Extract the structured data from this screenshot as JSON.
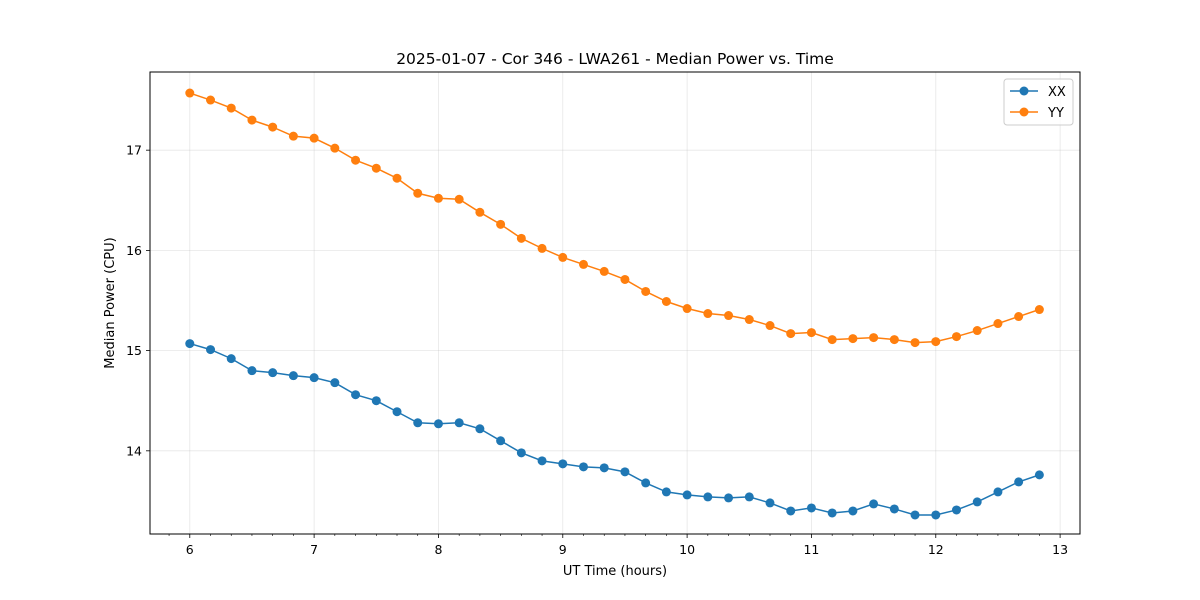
{
  "chart_data": {
    "type": "line",
    "title": "2025-01-07 - Cor 346 - LWA261 - Median Power vs. Time",
    "xlabel": "UT Time (hours)",
    "ylabel": "Median Power (CPU)",
    "xlim": [
      5.68,
      13.16
    ],
    "ylim": [
      13.17,
      17.78
    ],
    "xticks": [
      6,
      7,
      8,
      9,
      10,
      11,
      12,
      13
    ],
    "yticks": [
      14,
      15,
      16,
      17
    ],
    "grid": true,
    "legend_position": "upper-right",
    "x": [
      6.0,
      6.1667,
      6.3333,
      6.5,
      6.6667,
      6.8333,
      7.0,
      7.1667,
      7.3333,
      7.5,
      7.6667,
      7.8333,
      8.0,
      8.1667,
      8.3333,
      8.5,
      8.6667,
      8.8333,
      9.0,
      9.1667,
      9.3333,
      9.5,
      9.6667,
      9.8333,
      10.0,
      10.1667,
      10.3333,
      10.5,
      10.6667,
      10.8333,
      11.0,
      11.1667,
      11.3333,
      11.5,
      11.6667,
      11.8333,
      12.0,
      12.1667,
      12.3333,
      12.5,
      12.6667,
      12.8333
    ],
    "series": [
      {
        "name": "XX",
        "color": "#1f77b4",
        "values": [
          15.07,
          15.01,
          14.92,
          14.8,
          14.78,
          14.75,
          14.73,
          14.68,
          14.56,
          14.5,
          14.39,
          14.28,
          14.27,
          14.28,
          14.22,
          14.1,
          13.98,
          13.9,
          13.87,
          13.84,
          13.83,
          13.79,
          13.68,
          13.59,
          13.56,
          13.54,
          13.53,
          13.54,
          13.48,
          13.4,
          13.43,
          13.38,
          13.4,
          13.47,
          13.42,
          13.36,
          13.36,
          13.41,
          13.49,
          13.59,
          13.69,
          13.76
        ]
      },
      {
        "name": "YY",
        "color": "#ff7f0e",
        "values": [
          17.57,
          17.5,
          17.42,
          17.3,
          17.23,
          17.14,
          17.12,
          17.02,
          16.9,
          16.82,
          16.72,
          16.57,
          16.52,
          16.51,
          16.38,
          16.26,
          16.12,
          16.02,
          15.93,
          15.86,
          15.79,
          15.71,
          15.59,
          15.49,
          15.42,
          15.37,
          15.35,
          15.31,
          15.25,
          15.17,
          15.18,
          15.11,
          15.12,
          15.13,
          15.11,
          15.08,
          15.09,
          15.14,
          15.2,
          15.27,
          15.34,
          15.41
        ]
      }
    ]
  }
}
